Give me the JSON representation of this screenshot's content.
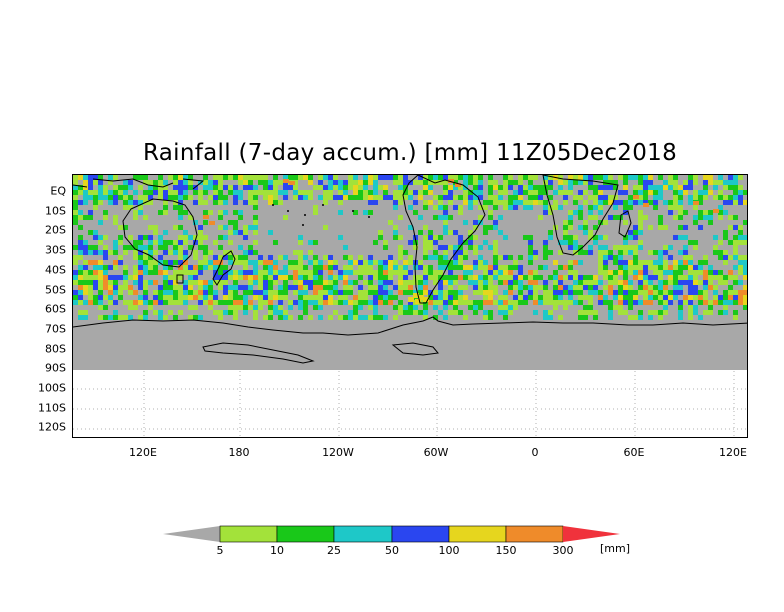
{
  "title": "Rainfall (7-day accum.) [mm] 11Z05Dec2018",
  "map": {
    "lat_labels": [
      "EQ",
      "10S",
      "20S",
      "30S",
      "40S",
      "50S",
      "60S",
      "70S",
      "80S",
      "90S",
      "100S",
      "110S",
      "120S"
    ],
    "lon_labels": [
      "120E",
      "180",
      "120W",
      "60W",
      "0",
      "60E",
      "120E"
    ],
    "colors": {
      "no_rain": "#a8a8a8",
      "light_green": "#a3e23a",
      "green": "#19c819",
      "teal": "#1ec8c8",
      "blue": "#2a46f0",
      "yellow": "#e6d61e",
      "orange": "#ef8b2a",
      "red": "#f0323c",
      "coast": "#000000",
      "grid": "#b0b0b0"
    }
  },
  "colorbar": {
    "ticks": [
      "5",
      "10",
      "25",
      "50",
      "100",
      "150",
      "300"
    ],
    "unit": "[mm]",
    "segment_colors": [
      "#a8a8a8",
      "#a3e23a",
      "#19c819",
      "#1ec8c8",
      "#2a46f0",
      "#e6d61e",
      "#ef8b2a",
      "#f0323c"
    ]
  }
}
